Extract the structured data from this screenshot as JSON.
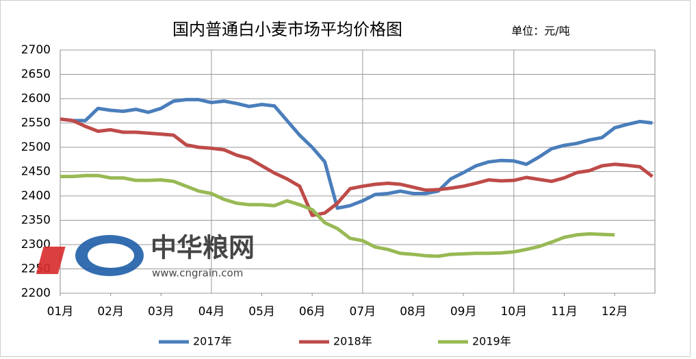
{
  "chart_data": {
    "type": "line",
    "title": "国内普通白小麦市场平均价格图",
    "unit_label": "单位：元/吨",
    "watermark": {
      "name": "中华粮网",
      "url": "www.cngrain.com"
    },
    "x": [
      1,
      1.25,
      1.5,
      1.75,
      2,
      2.25,
      2.5,
      2.75,
      3,
      3.25,
      3.5,
      3.75,
      4,
      4.25,
      4.5,
      4.75,
      5,
      5.25,
      5.5,
      5.75,
      6,
      6.25,
      6.5,
      6.75,
      7,
      7.25,
      7.5,
      7.75,
      8,
      8.25,
      8.5,
      8.75,
      9,
      9.25,
      9.5,
      9.75,
      10,
      10.25,
      10.5,
      10.75,
      11,
      11.25,
      11.5,
      11.75,
      12,
      12.25,
      12.5,
      12.75
    ],
    "xlim": [
      1,
      12.8
    ],
    "xticks": [
      {
        "value": 1,
        "label": "01月"
      },
      {
        "value": 2,
        "label": "02月"
      },
      {
        "value": 3,
        "label": "03月"
      },
      {
        "value": 4,
        "label": "04月"
      },
      {
        "value": 5,
        "label": "05月"
      },
      {
        "value": 6,
        "label": "06月"
      },
      {
        "value": 7,
        "label": "07月"
      },
      {
        "value": 8,
        "label": "08月"
      },
      {
        "value": 9,
        "label": "09月"
      },
      {
        "value": 10,
        "label": "10月"
      },
      {
        "value": 11,
        "label": "11月"
      },
      {
        "value": 12,
        "label": "12月"
      }
    ],
    "ylim": [
      2200,
      2700
    ],
    "yticks": [
      2200,
      2250,
      2300,
      2350,
      2400,
      2450,
      2500,
      2550,
      2600,
      2650,
      2700
    ],
    "grid": true,
    "legend": "bottom",
    "series": [
      {
        "name": "2017年",
        "color": "#4a7ebb",
        "values": [
          2558,
          2555,
          2555,
          2580,
          2576,
          2574,
          2578,
          2572,
          2580,
          2595,
          2598,
          2598,
          2592,
          2595,
          2590,
          2584,
          2588,
          2585,
          2555,
          2525,
          2500,
          2470,
          2375,
          2380,
          2390,
          2403,
          2405,
          2410,
          2405,
          2405,
          2410,
          2435,
          2448,
          2462,
          2470,
          2473,
          2472,
          2465,
          2480,
          2497,
          2504,
          2508,
          2515,
          2520,
          2540,
          2547,
          2553,
          2550
        ]
      },
      {
        "name": "2018年",
        "color": "#be4b48",
        "values": [
          2558,
          2555,
          2543,
          2533,
          2536,
          2531,
          2531,
          2529,
          2527,
          2525,
          2505,
          2500,
          2498,
          2495,
          2484,
          2477,
          2462,
          2447,
          2435,
          2420,
          2360,
          2365,
          2385,
          2415,
          2420,
          2424,
          2426,
          2424,
          2418,
          2412,
          2413,
          2416,
          2420,
          2426,
          2433,
          2431,
          2432,
          2438,
          2434,
          2430,
          2437,
          2448,
          2452,
          2462,
          2465,
          2463,
          2460,
          2440
        ]
      },
      {
        "name": "2019年",
        "color": "#98b954",
        "values": [
          2440,
          2440,
          2442,
          2442,
          2437,
          2437,
          2432,
          2432,
          2433,
          2430,
          2420,
          2410,
          2405,
          2393,
          2385,
          2382,
          2382,
          2380,
          2390,
          2382,
          2372,
          2345,
          2333,
          2313,
          2308,
          2295,
          2290,
          2282,
          2280,
          2277,
          2276,
          2280,
          2281,
          2282,
          2282,
          2283,
          2285,
          2290,
          2296,
          2305,
          2315,
          2320,
          2322,
          2321,
          2320,
          null,
          null,
          null
        ]
      }
    ]
  }
}
